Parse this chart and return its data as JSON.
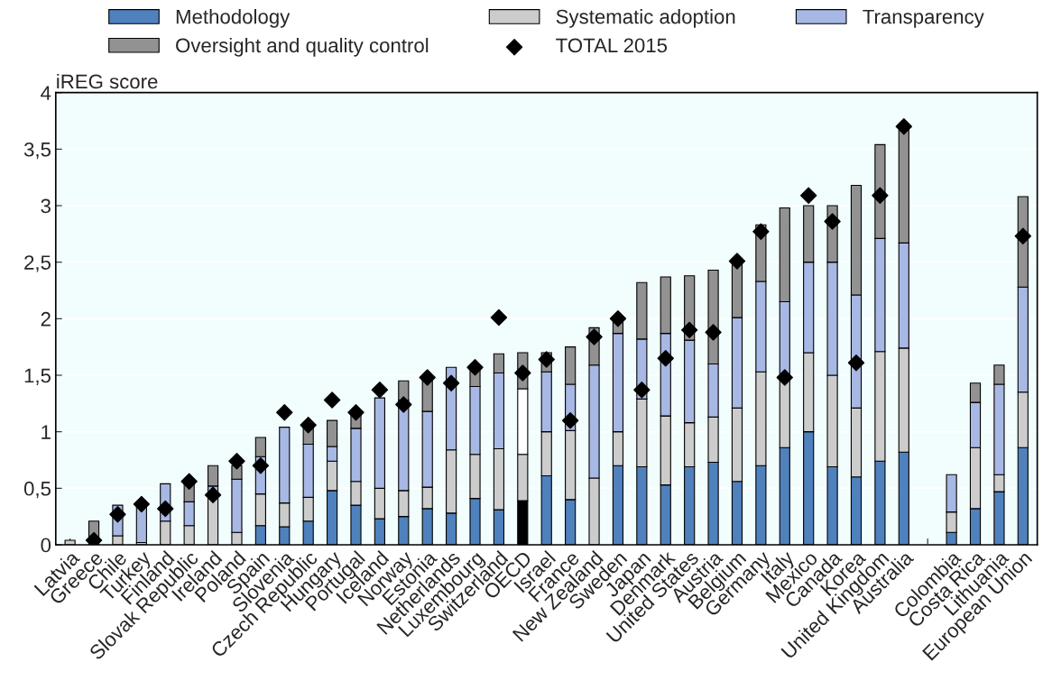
{
  "chart_data": {
    "type": "bar",
    "stacked": true,
    "ylabel": "iREG score",
    "categories": [
      "Latvia",
      "Greece",
      "Chile",
      "Turkey",
      "Finland",
      "Slovak Republic",
      "Ireland",
      "Poland",
      "Spain",
      "Slovenia",
      "Czech Republic",
      "Hungary",
      "Portugal",
      "Iceland",
      "Norway",
      "Estonia",
      "Netherlands",
      "Luxembourg",
      "Switzerland",
      "OECD",
      "Israel",
      "France",
      "New Zealand",
      "Sweden",
      "Japan",
      "Denmark",
      "United States",
      "Austria",
      "Belgium",
      "Germany",
      "Italy",
      "Mexico",
      "Canada",
      "Korea",
      "United Kingdom",
      "Australia",
      null,
      "Colombia",
      "Costa Rica",
      "Lithuania",
      "European Union"
    ],
    "series": [
      {
        "name": "Methodology",
        "color": "#4f81bd",
        "colors": [
          "#4f81bd",
          "#4f81bd",
          "#4f81bd",
          "#4f81bd",
          "#4f81bd",
          "#4f81bd",
          "#4f81bd",
          "#4f81bd",
          "#4f81bd",
          "#4f81bd",
          "#4f81bd",
          "#4f81bd",
          "#4f81bd",
          "#4f81bd",
          "#4f81bd",
          "#4f81bd",
          "#4f81bd",
          "#4f81bd",
          "#4f81bd",
          "#000000",
          "#4f81bd",
          "#4f81bd",
          "#4f81bd",
          "#4f81bd",
          "#4f81bd",
          "#4f81bd",
          "#4f81bd",
          "#4f81bd",
          "#4f81bd",
          "#4f81bd",
          "#4f81bd",
          "#4f81bd",
          "#4f81bd",
          "#4f81bd",
          "#4f81bd",
          "#4f81bd",
          "#4f81bd",
          "#4f81bd",
          "#4f81bd",
          "#4f81bd",
          "#4f81bd"
        ],
        "values": [
          0,
          0,
          0,
          0,
          0,
          0,
          0,
          0,
          0.17,
          0.16,
          0.21,
          0.48,
          0.35,
          0.23,
          0.25,
          0.32,
          0.28,
          0.41,
          0.31,
          0.39,
          0.61,
          0.4,
          0,
          0.7,
          0.69,
          0.53,
          0.69,
          0.73,
          0.56,
          0.7,
          0.86,
          1.0,
          0.69,
          0.6,
          0.74,
          0.82,
          null,
          0.11,
          0.32,
          0.47,
          0.86
        ]
      },
      {
        "name": "Systematic adoption",
        "color": "#cccccc",
        "values": [
          0.04,
          0,
          0.08,
          0.02,
          0.21,
          0.17,
          0.44,
          0.11,
          0.28,
          0.21,
          0.21,
          0.26,
          0.21,
          0.27,
          0.23,
          0.19,
          0.56,
          0.39,
          0.54,
          0.41,
          0.39,
          0.61,
          0.59,
          0.3,
          0.6,
          0.61,
          0.39,
          0.4,
          0.65,
          0.83,
          0.62,
          0.7,
          0.81,
          0.61,
          0.97,
          0.92,
          null,
          0.18,
          0.54,
          0.15,
          0.49
        ]
      },
      {
        "name": "Transparency",
        "color": "#a8b8e4",
        "colors": [
          "#a8b8e4",
          "#a8b8e4",
          "#a8b8e4",
          "#a8b8e4",
          "#a8b8e4",
          "#a8b8e4",
          "#a8b8e4",
          "#a8b8e4",
          "#a8b8e4",
          "#a8b8e4",
          "#a8b8e4",
          "#a8b8e4",
          "#a8b8e4",
          "#a8b8e4",
          "#a8b8e4",
          "#a8b8e4",
          "#a8b8e4",
          "#a8b8e4",
          "#a8b8e4",
          "#ffffff",
          "#a8b8e4",
          "#a8b8e4",
          "#a8b8e4",
          "#a8b8e4",
          "#a8b8e4",
          "#a8b8e4",
          "#a8b8e4",
          "#a8b8e4",
          "#a8b8e4",
          "#a8b8e4",
          "#a8b8e4",
          "#a8b8e4",
          "#a8b8e4",
          "#a8b8e4",
          "#a8b8e4",
          "#a8b8e4",
          "#a8b8e4",
          "#a8b8e4",
          "#a8b8e4",
          "#a8b8e4",
          "#a8b8e4"
        ],
        "values": [
          0,
          0,
          0.27,
          0.32,
          0.33,
          0.21,
          0.08,
          0.47,
          0.33,
          0.67,
          0.47,
          0.13,
          0.47,
          0.8,
          0.8,
          0.67,
          0.73,
          0.6,
          0.67,
          0.58,
          0.53,
          0.41,
          1.0,
          0.87,
          0.53,
          0.73,
          0.73,
          0.47,
          0.8,
          0.8,
          0.67,
          0.8,
          1.0,
          1.0,
          1.0,
          0.93,
          null,
          0.33,
          0.4,
          0.8,
          0.93
        ]
      },
      {
        "name": "Oversight and quality control",
        "color": "#929292",
        "values": [
          0,
          0.21,
          0,
          0,
          0,
          0.18,
          0.18,
          0.12,
          0.17,
          0,
          0.17,
          0.23,
          0.14,
          0,
          0.17,
          0.3,
          0,
          0.17,
          0.17,
          0.32,
          0.17,
          0.33,
          0.33,
          0.13,
          0.5,
          0.5,
          0.57,
          0.83,
          0.49,
          0.5,
          0.83,
          0.5,
          0.5,
          0.97,
          0.83,
          1.0,
          null,
          0,
          0.17,
          0.17,
          0.8
        ]
      },
      {
        "name": "TOTAL 2015",
        "type": "scatter",
        "marker": "diamond",
        "color": "#000000",
        "values": [
          null,
          0.04,
          0.27,
          0.36,
          0.32,
          0.56,
          0.44,
          0.74,
          0.7,
          1.17,
          1.06,
          1.28,
          1.17,
          1.37,
          1.24,
          1.48,
          1.43,
          1.57,
          2.01,
          1.52,
          1.64,
          1.1,
          1.84,
          2.0,
          1.37,
          1.65,
          1.9,
          1.88,
          2.51,
          2.77,
          1.48,
          3.09,
          2.86,
          1.61,
          3.09,
          3.7,
          null,
          null,
          null,
          null,
          2.73
        ]
      }
    ],
    "ylim": [
      0,
      4
    ],
    "yticks": [
      0,
      {
        "value": 0.5,
        "label": "0,5"
      },
      1,
      {
        "value": 1.5,
        "label": "1,5"
      },
      2,
      {
        "value": 2.5,
        "label": "2,5"
      },
      3,
      {
        "value": 3.5,
        "label": "3,5"
      },
      4
    ],
    "grid": "y",
    "legend": "top"
  }
}
